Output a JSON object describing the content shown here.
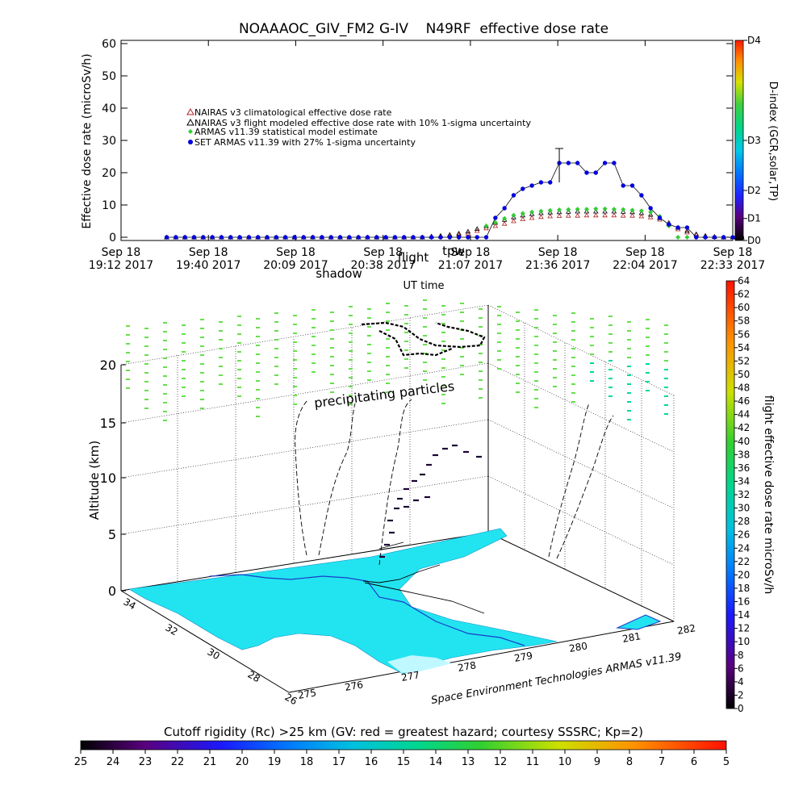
{
  "title": "NOAAAOC_GIV_FM2 G-IV    N49RF  effective dose rate",
  "chart_data": [
    {
      "type": "line",
      "title": "NOAAAOC_GIV_FM2 G-IV    N49RF  effective dose rate",
      "xlabel": "UT time",
      "ylabel": "Effective dose rate (microSv/h)",
      "ylim": [
        0,
        60
      ],
      "yticks": [
        "0",
        "10",
        "20",
        "30",
        "40",
        "50",
        "60"
      ],
      "xticks": [
        {
          "l1": "Sep 18",
          "l2": "19:12 2017"
        },
        {
          "l1": "Sep 18",
          "l2": "19:40 2017"
        },
        {
          "l1": "Sep 18",
          "l2": "20:09 2017"
        },
        {
          "l1": "Sep 18",
          "l2": "20:38 2017"
        },
        {
          "l1": "Sep 18",
          "l2": "21:07 2017"
        },
        {
          "l1": "Sep 18",
          "l2": "21:36 2017"
        },
        {
          "l1": "Sep 18",
          "l2": "22:04 2017"
        },
        {
          "l1": "Sep 18",
          "l2": "22:33 2017"
        }
      ],
      "overlay_text": {
        "t1": "tpw",
        "t2": "flight",
        "t3": "shadow"
      },
      "x_minutes_since_1912": [
        15,
        18,
        21,
        24,
        27,
        30,
        33,
        36,
        39,
        42,
        45,
        48,
        51,
        54,
        57,
        60,
        63,
        66,
        69,
        72,
        75,
        78,
        81,
        84,
        87,
        90,
        93,
        96,
        99,
        102,
        105,
        108,
        111,
        114,
        117,
        120,
        123,
        126,
        129,
        132,
        135,
        138,
        141,
        144,
        147,
        150,
        153,
        156,
        159,
        162,
        165,
        168,
        171,
        174,
        177,
        180,
        183,
        186,
        189,
        192,
        195,
        198,
        201,
        204
      ],
      "series": [
        {
          "name": "NAIRAS v3 climatological effective dose rate",
          "color": "#b22222",
          "marker": "triangle-open",
          "values": [
            0,
            0,
            0,
            0,
            0,
            0,
            0,
            0,
            0,
            0,
            0,
            0,
            0,
            0,
            0,
            0,
            0,
            0,
            0,
            0,
            0,
            0,
            0,
            0,
            0,
            0,
            0,
            0,
            0,
            0.2,
            0.3,
            0.5,
            0.8,
            1.2,
            2,
            2.8,
            3.5,
            4.2,
            5,
            5.6,
            6,
            6.3,
            6.5,
            6.6,
            6.7,
            6.7,
            6.8,
            6.8,
            6.8,
            6.8,
            6.7,
            6.7,
            6.5,
            6.2,
            5.5,
            4,
            2.5,
            1.5,
            0.8,
            0.3,
            0.1,
            0,
            0,
            0
          ]
        },
        {
          "name": "NAIRAS v3 flight modeled effective dose rate with 10% 1-sigma uncertainty",
          "color": "#000000",
          "marker": "triangle-open",
          "values": [
            0,
            0,
            0,
            0,
            0,
            0,
            0,
            0,
            0,
            0,
            0,
            0,
            0,
            0,
            0,
            0,
            0,
            0,
            0,
            0,
            0,
            0,
            0,
            0,
            0,
            0,
            0,
            0,
            0,
            0.3,
            0.5,
            0.8,
            1.2,
            1.8,
            2.6,
            3.5,
            4.5,
            5.4,
            6.2,
            6.8,
            7.2,
            7.5,
            7.7,
            7.8,
            7.9,
            8,
            8,
            8,
            8,
            8,
            7.9,
            7.8,
            7.5,
            7,
            6,
            4.5,
            3,
            2,
            1,
            0.5,
            0.2,
            0,
            0,
            0
          ]
        },
        {
          "name": "ARMAS v11.39 statistical model estimate",
          "color": "#33cc33",
          "marker": "diamond-filled",
          "values": [
            0,
            0,
            0,
            0,
            0,
            0,
            0,
            0,
            0,
            0,
            0,
            0,
            0,
            0,
            0,
            0,
            0,
            0,
            0,
            0,
            0,
            0,
            0,
            0,
            0,
            0,
            0,
            0,
            0,
            0,
            0,
            0,
            0,
            0,
            0,
            3.5,
            4.6,
            5.8,
            6.8,
            7.4,
            7.8,
            8.1,
            8.3,
            8.5,
            8.6,
            8.7,
            8.7,
            8.8,
            8.8,
            8.7,
            8.6,
            8.4,
            8.2,
            7.8,
            6.5,
            3.5,
            0,
            0,
            0,
            0,
            0,
            0,
            0,
            0
          ]
        },
        {
          "name": "SET ARMAS v11.39 with 27% 1-sigma uncertainty",
          "color": "#0000dd",
          "marker": "circle-filled",
          "values": [
            0,
            0,
            0,
            0,
            0,
            0,
            0,
            0,
            0,
            0,
            0,
            0,
            0,
            0,
            0,
            0,
            0,
            0,
            0,
            0,
            0,
            0,
            0,
            0,
            0,
            0,
            0,
            0,
            0,
            0,
            0,
            0,
            0,
            0,
            0,
            0,
            6,
            9,
            13,
            15,
            16,
            17,
            17,
            23,
            23,
            23,
            20,
            20,
            23,
            23,
            16,
            16,
            13,
            9,
            6,
            4,
            3,
            3,
            0,
            0,
            0,
            0,
            0,
            0
          ]
        }
      ],
      "error_bar": {
        "x_minutes_since_1912": 144,
        "low": 17,
        "high": 27.5
      },
      "right_colorbar": {
        "label": "D-index (GCR,solar,TP)",
        "ticks": [
          "D0",
          "D1",
          "D2",
          "D3",
          "D4"
        ]
      }
    },
    {
      "type": "3d-trajectory",
      "zlabel": "Altitude (km)",
      "zticks": [
        "0",
        "5",
        "10",
        "15",
        "20"
      ],
      "lat_ticks": [
        "34",
        "32",
        "30",
        "28",
        "26"
      ],
      "lon_ticks": [
        "275",
        "276",
        "277",
        "278",
        "279",
        "280",
        "281",
        "282"
      ],
      "annotation": "precipitating particles",
      "credit": "Space Environment Technologies ARMAS v11.39",
      "right_colorbar": {
        "label": "flight effective dose rate microSv/h",
        "ticks": [
          "0",
          "2",
          "4",
          "6",
          "8",
          "10",
          "12",
          "14",
          "16",
          "18",
          "20",
          "22",
          "24",
          "26",
          "28",
          "30",
          "32",
          "34",
          "36",
          "38",
          "40",
          "42",
          "44",
          "46",
          "48",
          "50",
          "52",
          "54",
          "56",
          "58",
          "60",
          "62",
          "64"
        ]
      },
      "bottom_colorbar": {
        "label": "Cutoff rigidity (Rc) >25 km (GV: red = greatest hazard; courtesy SSSRC; Kp=2)",
        "ticks": [
          "25",
          "24",
          "23",
          "22",
          "21",
          "20",
          "19",
          "18",
          "17",
          "16",
          "15",
          "14",
          "13",
          "12",
          "11",
          "10",
          "9",
          "8",
          "7",
          "6",
          "5"
        ]
      },
      "map_color": "#22e4f0",
      "rigidity_marker_color": "#66e04a"
    }
  ]
}
